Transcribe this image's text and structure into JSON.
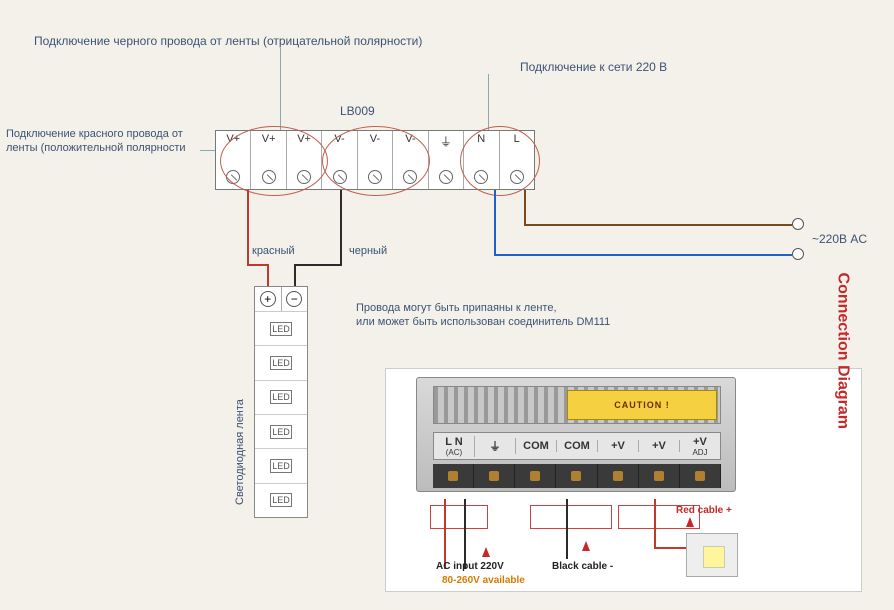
{
  "colors": {
    "bg": "#f4f0ea",
    "text": "#3b5375",
    "wire_red": "#c0392b",
    "wire_black": "#2b2b2b",
    "wire_blue": "#1e62c9",
    "wire_brown": "#7a4a1f",
    "circle_mark": "#c06050",
    "photo_red": "#c62828"
  },
  "labels": {
    "top1": "Подключение черного провода от ленты (отрицательной полярности)",
    "top2": "Подключение к сети 220 В",
    "model": "LB009",
    "left1a": "Подключение красного провода от",
    "left1b": "ленты (положительной полярности",
    "red_w": "красный",
    "black_w": "черный",
    "ac": "~220В  AC",
    "note1": "Провода могут быть припаяны к ленте,",
    "note2": "или может быть использован соединитель DM111",
    "strip": "Светодиодная лента"
  },
  "terminals": [
    "V+",
    "V+",
    "V+",
    "V-",
    "V-",
    "V-",
    "⏚",
    "N",
    "L"
  ],
  "led_box": "LED",
  "led_count": 6,
  "photo": {
    "caution": "CAUTION !",
    "panel": [
      {
        "t": "L   N",
        "s": "(AC)"
      },
      {
        "t": "⏚",
        "s": ""
      },
      {
        "t": "COM",
        "s": ""
      },
      {
        "t": "COM",
        "s": ""
      },
      {
        "t": "+V",
        "s": ""
      },
      {
        "t": "+V",
        "s": ""
      },
      {
        "t": "+V",
        "s": "ADJ"
      }
    ],
    "conn": "Connection Diagram",
    "ac_in": "AC input 220V",
    "ac_range": "80-260V available",
    "black": "Black cable -",
    "red": "Red cable +"
  }
}
